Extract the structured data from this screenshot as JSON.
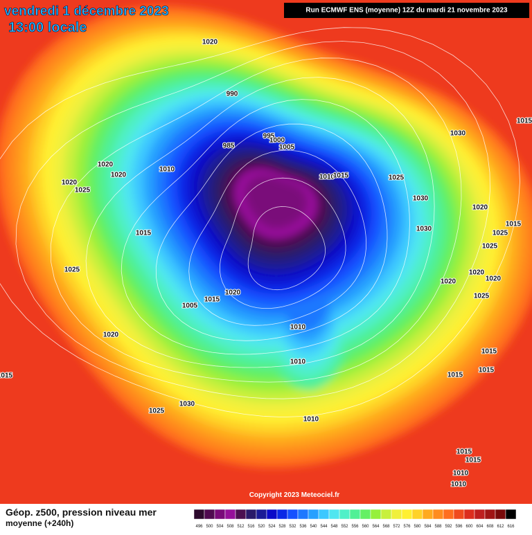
{
  "header": {
    "date": "vendredi 1 décembre 2023",
    "time": "13:00 locale",
    "run": "Run ECMWF ENS (moyenne) 12Z du mardi 21 novembre 2023"
  },
  "copyright": "Copyright 2023 Meteociel.fr",
  "footer": {
    "title": "Géop. z500, pression niveau mer",
    "subtitle": "moyenne  (+240h)"
  },
  "legend": {
    "ticks": [
      496,
      500,
      504,
      508,
      512,
      516,
      520,
      524,
      528,
      532,
      536,
      540,
      544,
      548,
      552,
      556,
      560,
      564,
      568,
      572,
      576,
      580,
      584,
      588,
      592,
      596,
      600,
      604,
      608,
      612,
      616
    ],
    "colors": [
      "#2d0a2d",
      "#500a50",
      "#7a0a7a",
      "#96109a",
      "#4c1050",
      "#2a1a6a",
      "#1a1a96",
      "#0a0ac8",
      "#0a28e6",
      "#1450ff",
      "#1e78ff",
      "#28a0ff",
      "#3cc8ff",
      "#50e6f0",
      "#50f0c8",
      "#50f096",
      "#64f064",
      "#96f03c",
      "#c8f03c",
      "#f0f03c",
      "#fff032",
      "#ffd228",
      "#ffaa1e",
      "#ff8c1e",
      "#ff6e1e",
      "#f04b1e",
      "#dc2d1e",
      "#be1e1e",
      "#a01414",
      "#780a0a",
      "#000000"
    ]
  },
  "isobars": [
    1020,
    990,
    985,
    995,
    1000,
    1005,
    1010,
    1015,
    1025,
    1030,
    1015,
    1020,
    1020,
    1010,
    1020,
    1025,
    1030,
    1020,
    1030,
    1015,
    1025,
    1025,
    1015,
    1025,
    1020,
    1020,
    1020,
    1005,
    1015,
    1020,
    1025,
    1010,
    1020,
    1010,
    1015,
    1015,
    1015,
    1015,
    1030,
    1025,
    1010,
    1015,
    1015,
    1010,
    1010
  ]
}
